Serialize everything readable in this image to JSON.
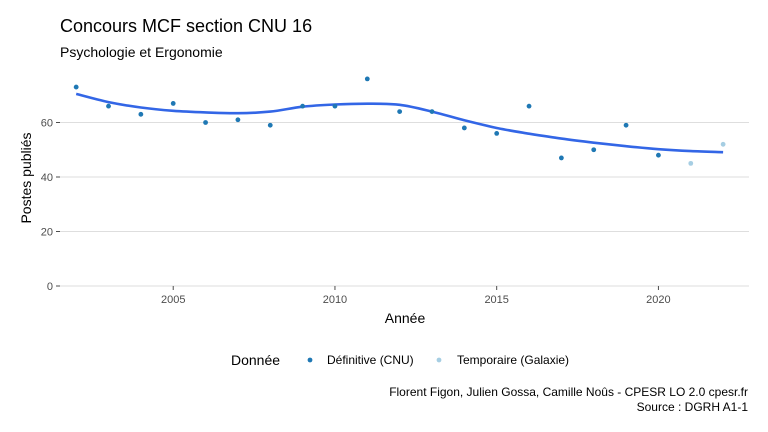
{
  "chart_data": {
    "type": "scatter",
    "title": "Concours MCF section CNU 16",
    "subtitle": "Psychologie et Ergonomie",
    "xlabel": "Année",
    "ylabel": "Postes publiés",
    "xlim": [
      2001.5,
      2022.8
    ],
    "ylim": [
      0,
      80
    ],
    "x_ticks": [
      2005,
      2010,
      2015,
      2020
    ],
    "y_ticks": [
      0,
      20,
      40,
      60
    ],
    "grid": true,
    "legend": {
      "title": "Donnée",
      "position": "bottom",
      "entries": [
        "Définitive (CNU)",
        "Temporaire (Galaxie)"
      ]
    },
    "series": [
      {
        "name": "Définitive (CNU)",
        "color": "#1f78b4",
        "x": [
          2002,
          2003,
          2004,
          2005,
          2006,
          2007,
          2008,
          2009,
          2010,
          2011,
          2012,
          2013,
          2014,
          2015,
          2016,
          2017,
          2018,
          2019,
          2020
        ],
        "y": [
          73,
          66,
          63,
          67,
          60,
          61,
          59,
          66,
          66,
          76,
          64,
          64,
          58,
          56,
          66,
          47,
          50,
          59,
          48
        ]
      },
      {
        "name": "Temporaire (Galaxie)",
        "color": "#a6cee3",
        "x": [
          2021,
          2022
        ],
        "y": [
          45,
          52
        ]
      }
    ],
    "trend": {
      "color": "#3366e6",
      "x": [
        2002,
        2003,
        2004,
        2005,
        2006,
        2007,
        2008,
        2009,
        2010,
        2011,
        2012,
        2013,
        2014,
        2015,
        2016,
        2017,
        2018,
        2019,
        2020,
        2021,
        2022
      ],
      "y": [
        70.5,
        67.5,
        65.5,
        64.3,
        63.7,
        63.4,
        64.0,
        65.8,
        66.6,
        66.9,
        66.5,
        64.0,
        60.8,
        58.0,
        55.9,
        54.1,
        52.6,
        51.3,
        50.2,
        49.5,
        49.1
      ]
    },
    "caption": [
      "Florent Figon, Julien Gossa, Camille Noûs - CPESR LO 2.0 cpesr.fr",
      "Source : DGRH A1-1"
    ]
  }
}
